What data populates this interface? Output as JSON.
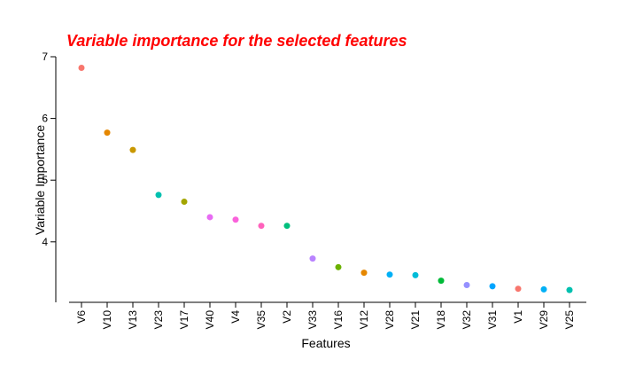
{
  "title": "Variable importance for the selected features",
  "title_color": "#ff0000",
  "chart_data": {
    "type": "scatter",
    "title": "Variable importance for the selected features",
    "xlabel": "Features",
    "ylabel": "Variable Importance",
    "categories": [
      "V6",
      "V10",
      "V13",
      "V23",
      "V17",
      "V40",
      "V4",
      "V35",
      "V2",
      "V33",
      "V16",
      "V12",
      "V28",
      "V21",
      "V18",
      "V32",
      "V31",
      "V1",
      "V29",
      "V25"
    ],
    "values": [
      6.82,
      5.77,
      5.49,
      4.76,
      4.65,
      4.4,
      4.36,
      4.26,
      4.26,
      3.73,
      3.59,
      3.5,
      3.47,
      3.46,
      3.37,
      3.3,
      3.28,
      3.24,
      3.23,
      3.22
    ],
    "colors": [
      "#f8766d",
      "#e58700",
      "#c99800",
      "#00c0af",
      "#a3a500",
      "#e76bf3",
      "#fa62db",
      "#ff62bc",
      "#00bf7d",
      "#b983ff",
      "#6bb100",
      "#e58700",
      "#00b0f6",
      "#00bcd8",
      "#00ba38",
      "#9590ff",
      "#00a5ff",
      "#f8766d",
      "#00b0f6",
      "#00c0af"
    ],
    "yticks": [
      4,
      5,
      6,
      7
    ],
    "ylim": [
      3.0,
      7.0
    ],
    "grid": false,
    "legend": "none"
  }
}
